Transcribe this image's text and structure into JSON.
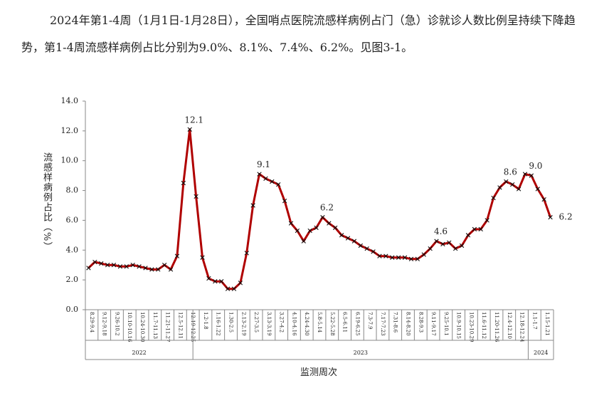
{
  "paragraph": "2024年第1-4周（1月1日-1月28日），全国哨点医院流感样病例占门（急）诊就诊人数比例呈持续下降趋势，第1-4周流感样病例占比分别为9.0%、8.1%、7.4%、6.2%。见图3-1。",
  "chart_data": {
    "type": "line",
    "y_label": "流感样病例占比（%）",
    "x_label": "监测周次",
    "categories": [
      "8.29-9.4",
      null,
      "9.12-9.18",
      null,
      "9.26-10.2",
      null,
      "10.10-10.16",
      null,
      "10.24-10.30",
      null,
      "11.7-11.13",
      null,
      "11.21-11.27",
      null,
      "12.5-12.11",
      null,
      "12.19-12.25",
      null,
      "1.2-1.8",
      null,
      "1.16-1.22",
      null,
      "1.30-2.5",
      null,
      "2.13-2.19",
      null,
      "2.27-3.5",
      null,
      "3.13-3.19",
      null,
      "3.27-4.2",
      null,
      "4.10-4.16",
      null,
      "4.24-4.30",
      null,
      "5.8-5.14",
      null,
      "5.22-5.28",
      null,
      "6.5-6.11",
      null,
      "6.19-6.25",
      null,
      "7.3-7.9",
      null,
      "7.17-7.23",
      null,
      "7.31-8.6",
      null,
      "8.14-8.20",
      null,
      "8.28-9.3",
      null,
      "9.11-9.17",
      null,
      "9.25-10.1",
      null,
      "10.9-10.15",
      null,
      "10.23-10.29",
      null,
      "11.6-11.12",
      null,
      "11.20-11.26",
      null,
      "12.4-12.10",
      null,
      "12.18-12.24",
      null,
      "1.1-1.7",
      null,
      "1.15-1.21",
      null
    ],
    "years": [
      {
        "label": "2022",
        "count": 17
      },
      {
        "label": "2023",
        "count": 53
      },
      {
        "label": "2024",
        "count": 4
      }
    ],
    "color": "#b00000",
    "values": [
      2.8,
      3.2,
      3.1,
      3.0,
      3.0,
      2.9,
      2.9,
      3.0,
      2.9,
      2.8,
      2.7,
      2.7,
      3.0,
      2.7,
      3.6,
      8.5,
      12.1,
      7.6,
      3.5,
      2.1,
      1.9,
      1.9,
      1.4,
      1.4,
      1.8,
      3.8,
      7.0,
      9.1,
      8.8,
      8.6,
      8.4,
      7.3,
      5.8,
      5.3,
      4.6,
      5.3,
      5.5,
      6.2,
      5.8,
      5.5,
      5.0,
      4.8,
      4.6,
      4.3,
      4.1,
      3.9,
      3.6,
      3.6,
      3.5,
      3.5,
      3.5,
      3.4,
      3.4,
      3.7,
      4.1,
      4.6,
      4.4,
      4.5,
      4.1,
      4.3,
      5.0,
      5.4,
      5.4,
      6.0,
      7.5,
      8.2,
      8.6,
      8.4,
      8.1,
      9.1,
      9.0,
      8.1,
      7.4,
      6.2
    ],
    "value_labels": [
      null,
      null,
      null,
      null,
      null,
      null,
      null,
      null,
      null,
      null,
      null,
      null,
      null,
      null,
      null,
      null,
      "12.1",
      null,
      null,
      null,
      null,
      null,
      null,
      null,
      null,
      null,
      null,
      "9.1",
      null,
      null,
      null,
      null,
      null,
      null,
      null,
      null,
      null,
      "6.2",
      null,
      null,
      null,
      null,
      null,
      null,
      null,
      null,
      null,
      null,
      null,
      null,
      null,
      null,
      null,
      null,
      null,
      "4.6",
      null,
      null,
      null,
      null,
      null,
      null,
      null,
      null,
      null,
      null,
      "8.6",
      null,
      null,
      null,
      "9.0",
      null,
      null,
      "6.2"
    ],
    "ylim": [
      0,
      14
    ],
    "yticks": [
      {
        "value": 0,
        "label": "0.0"
      },
      {
        "value": 2,
        "label": "2.0"
      },
      {
        "value": 4,
        "label": "4.0"
      },
      {
        "value": 6,
        "label": "6.0"
      },
      {
        "value": 8,
        "label": "8.0"
      },
      {
        "value": 10,
        "label": "10.0"
      },
      {
        "value": 12,
        "label": "12.0"
      },
      {
        "value": 14,
        "label": "14.0"
      }
    ]
  }
}
